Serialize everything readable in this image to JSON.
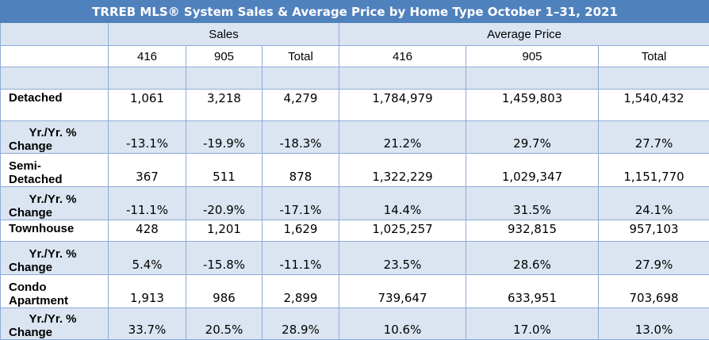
{
  "title": "TRREB MLS® System Sales & Average Price by Home Type October 1–31, 2021",
  "groups": {
    "sales": "Sales",
    "avg_price": "Average Price"
  },
  "columns": [
    "416",
    "905",
    "Total",
    "416",
    "905",
    "Total"
  ],
  "rows": [
    {
      "label_lines": [
        "Detached"
      ],
      "values": [
        "1,061",
        "3,218",
        "4,279",
        "1,784,979",
        "1,459,803",
        "1,540,432"
      ]
    },
    {
      "label_lines": [
        "Yr./Yr. %",
        "Change"
      ],
      "values": [
        "-13.1%",
        "-19.9%",
        "-18.3%",
        "21.2%",
        "29.7%",
        "27.7%"
      ]
    },
    {
      "label_lines": [
        "Semi-",
        "Detached"
      ],
      "values": [
        "367",
        "511",
        "878",
        "1,322,229",
        "1,029,347",
        "1,151,770"
      ]
    },
    {
      "label_lines": [
        "Yr./Yr. %",
        "Change"
      ],
      "values": [
        "-11.1%",
        "-20.9%",
        "-17.1%",
        "14.4%",
        "31.5%",
        "24.1%"
      ]
    },
    {
      "label_lines": [
        "Townhouse"
      ],
      "values": [
        "428",
        "1,201",
        "1,629",
        "1,025,257",
        "932,815",
        "957,103"
      ]
    },
    {
      "label_lines": [
        "Yr./Yr. %",
        "Change"
      ],
      "values": [
        "5.4%",
        "-15.8%",
        "-11.1%",
        "23.5%",
        "28.6%",
        "27.9%"
      ]
    },
    {
      "label_lines": [
        "Condo",
        "Apartment"
      ],
      "values": [
        "1,913",
        "986",
        "2,899",
        "739,647",
        "633,951",
        "703,698"
      ]
    },
    {
      "label_lines": [
        "Yr./Yr. %",
        "Change"
      ],
      "values": [
        "33.7%",
        "20.5%",
        "28.9%",
        "10.6%",
        "17.0%",
        "13.0%"
      ]
    }
  ],
  "colors": {
    "title_bg": "#4f81bd",
    "shade": "#dbe5f1",
    "border": "#8eaad8"
  }
}
